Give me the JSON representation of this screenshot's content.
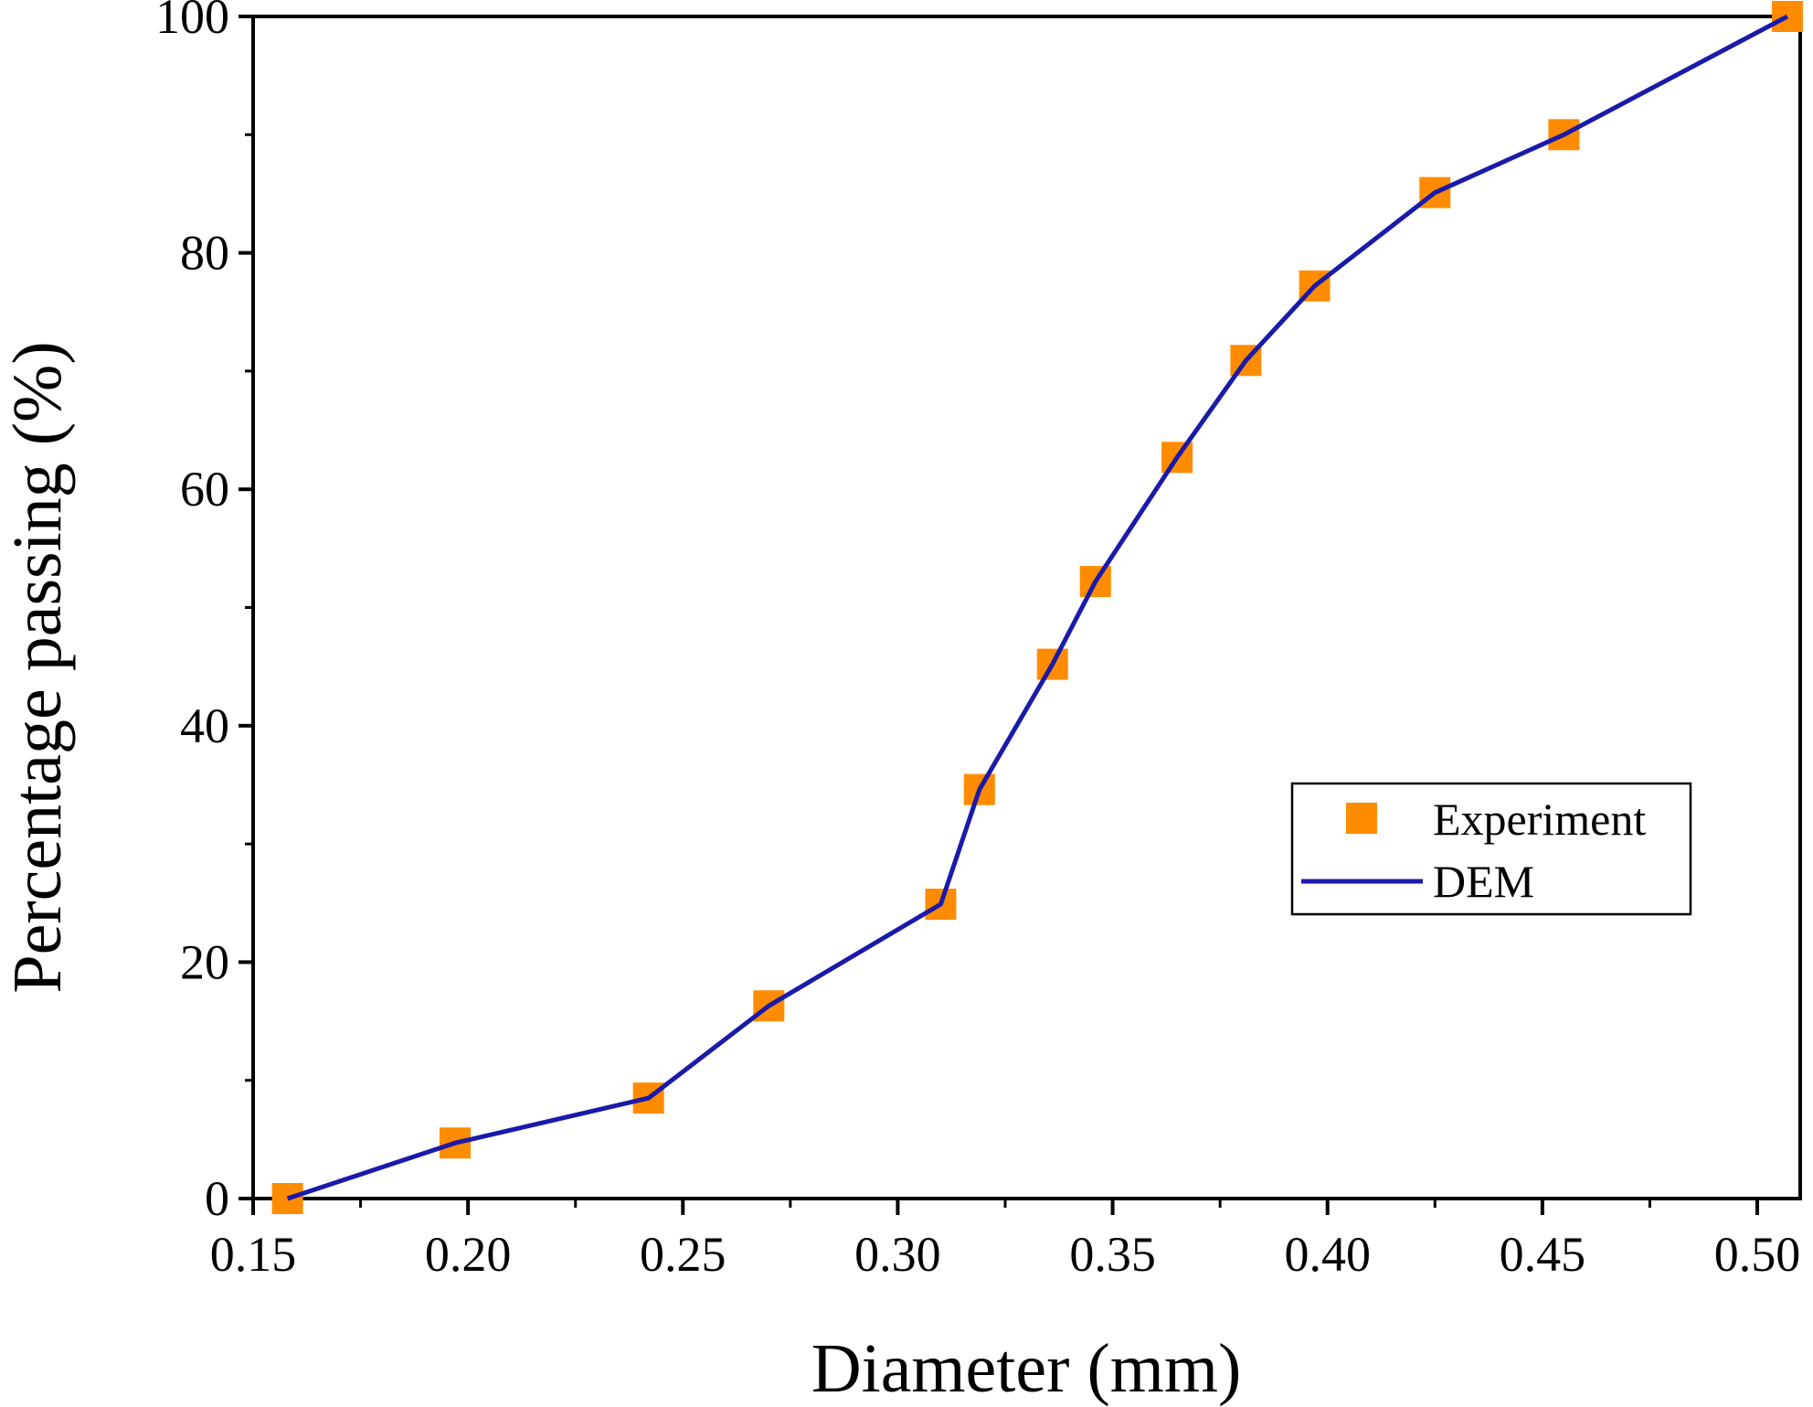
{
  "chart_data": {
    "type": "line",
    "xlabel": "Diameter (mm)",
    "ylabel": "Percentage passing (%)",
    "xlim": [
      0.15,
      0.51
    ],
    "ylim": [
      0,
      100
    ],
    "x_ticks": [
      "0.15",
      "0.20",
      "0.25",
      "0.30",
      "0.35",
      "0.40",
      "0.45",
      "0.50"
    ],
    "y_ticks": [
      "0",
      "20",
      "40",
      "60",
      "80",
      "100"
    ],
    "legend_position": "right-middle",
    "series": [
      {
        "name": "Experiment",
        "kind": "scatter",
        "marker": "square",
        "color": "#FF8C00",
        "x": [
          0.158,
          0.197,
          0.242,
          0.27,
          0.31,
          0.319,
          0.336,
          0.346,
          0.365,
          0.381,
          0.397,
          0.425,
          0.455,
          0.507
        ],
        "y": [
          0,
          4.7,
          8.5,
          16.3,
          24.9,
          34.6,
          45.2,
          52.2,
          62.7,
          70.9,
          77.2,
          85.1,
          90.0,
          100
        ]
      },
      {
        "name": "DEM",
        "kind": "line",
        "color": "#1a1aaa",
        "x": [
          0.158,
          0.197,
          0.242,
          0.27,
          0.31,
          0.319,
          0.336,
          0.346,
          0.365,
          0.381,
          0.397,
          0.425,
          0.455,
          0.507
        ],
        "y": [
          0,
          4.7,
          8.5,
          16.3,
          24.9,
          34.6,
          45.2,
          52.2,
          62.7,
          70.9,
          77.2,
          85.1,
          90.0,
          100
        ]
      }
    ]
  }
}
